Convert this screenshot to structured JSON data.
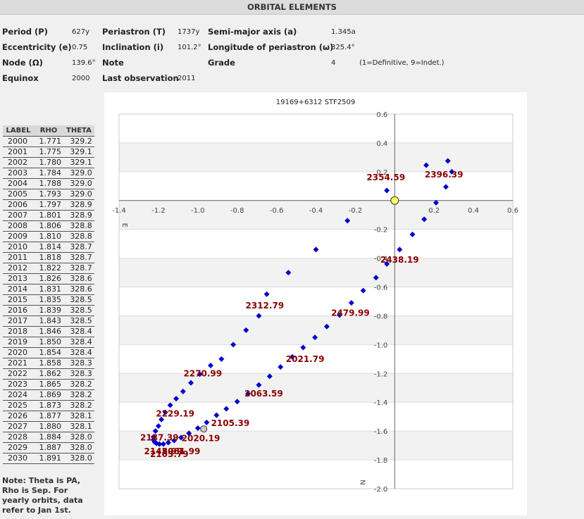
{
  "header": {
    "title": "ORBITAL ELEMENTS"
  },
  "elements": {
    "period": {
      "label": "Period (P)",
      "value": "627y"
    },
    "periastron": {
      "label": "Periastron (T)",
      "value": "1737y"
    },
    "semi_major": {
      "label": "Semi-major axis (a)",
      "value": "1.345a"
    },
    "eccentricity": {
      "label": "Eccentricity (e)",
      "value": "0.75"
    },
    "inclination": {
      "label": "Inclination (i)",
      "value": "101.2°"
    },
    "long_periastron": {
      "label": "Longitude of periastron (ω)",
      "value": "325.4°"
    },
    "node": {
      "label": "Node (Ω)",
      "value": "139.6°"
    },
    "note": {
      "label": "Note",
      "value": ""
    },
    "grade": {
      "label": "Grade",
      "value": "4",
      "hint": "(1=Definitive, 9=Indet.)"
    },
    "equinox": {
      "label": "Equinox",
      "value": "2000"
    },
    "last_obs": {
      "label": "Last observation",
      "value": "2011"
    }
  },
  "table": {
    "headers": [
      "LABEL",
      "RHO",
      "THETA"
    ],
    "rows": [
      [
        "2000",
        "1.771",
        "329.2"
      ],
      [
        "2001",
        "1.775",
        "329.1"
      ],
      [
        "2002",
        "1.780",
        "329.1"
      ],
      [
        "2003",
        "1.784",
        "329.0"
      ],
      [
        "2004",
        "1.788",
        "329.0"
      ],
      [
        "2005",
        "1.793",
        "329.0"
      ],
      [
        "2006",
        "1.797",
        "328.9"
      ],
      [
        "2007",
        "1.801",
        "328.9"
      ],
      [
        "2008",
        "1.806",
        "328.8"
      ],
      [
        "2009",
        "1.810",
        "328.8"
      ],
      [
        "2010",
        "1.814",
        "328.7"
      ],
      [
        "2011",
        "1.818",
        "328.7"
      ],
      [
        "2012",
        "1.822",
        "328.7"
      ],
      [
        "2013",
        "1.826",
        "328.6"
      ],
      [
        "2014",
        "1.831",
        "328.6"
      ],
      [
        "2015",
        "1.835",
        "328.5"
      ],
      [
        "2016",
        "1.839",
        "328.5"
      ],
      [
        "2017",
        "1.843",
        "328.5"
      ],
      [
        "2018",
        "1.846",
        "328.4"
      ],
      [
        "2019",
        "1.850",
        "328.4"
      ],
      [
        "2020",
        "1.854",
        "328.4"
      ],
      [
        "2021",
        "1.858",
        "328.3"
      ],
      [
        "2022",
        "1.862",
        "328.3"
      ],
      [
        "2023",
        "1.865",
        "328.2"
      ],
      [
        "2024",
        "1.869",
        "328.2"
      ],
      [
        "2025",
        "1.873",
        "328.2"
      ],
      [
        "2026",
        "1.877",
        "328.1"
      ],
      [
        "2027",
        "1.880",
        "328.1"
      ],
      [
        "2028",
        "1.884",
        "328.0"
      ],
      [
        "2029",
        "1.887",
        "328.0"
      ],
      [
        "2030",
        "1.891",
        "328.0"
      ]
    ]
  },
  "note_text": "Note: Theta is PA, Rho is Sep. For yearly orbits, data refer to Jan 1st.",
  "chart_data": {
    "type": "scatter",
    "title": "19169+6312 STF2509",
    "xlim": [
      -1.4,
      0.6
    ],
    "ylim": [
      -2.0,
      0.6
    ],
    "xticks": [
      "-1.4",
      "-1.2",
      "-1.0",
      "-0.8",
      "-0.6",
      "-0.4",
      "-0.2",
      "0.2",
      "0.4",
      "0.6"
    ],
    "xtick_values": [
      -1.4,
      -1.2,
      -1.0,
      -0.8,
      -0.6,
      -0.4,
      -0.2,
      0.2,
      0.4,
      0.6
    ],
    "yticks": [
      "0.6",
      "0.4",
      "0.2",
      "-0.2",
      "-0.4",
      "-0.6",
      "-0.8",
      "-1.0",
      "-1.2",
      "-1.4",
      "-1.6",
      "-1.8",
      "-2.0"
    ],
    "ytick_values": [
      0.6,
      0.4,
      0.2,
      -0.2,
      -0.4,
      -0.6,
      -0.8,
      -1.0,
      -1.2,
      -1.4,
      -1.6,
      -1.8,
      -2.0
    ],
    "x_axis_letter": "E",
    "y_axis_letter": "N",
    "grid": true,
    "colors": {
      "points": "#0000cc",
      "labels": "#8b0000",
      "primary": "#ffff66",
      "current": "#cccccc"
    },
    "primary": [
      0,
      0
    ],
    "current_point": [
      -0.97,
      -1.585
    ],
    "points": [
      [
        -0.04,
        0.07
      ],
      [
        0.16,
        0.245
      ],
      [
        0.27,
        0.275
      ],
      [
        0.29,
        0.2
      ],
      [
        0.26,
        0.095
      ],
      [
        0.21,
        -0.015
      ],
      [
        0.15,
        -0.13
      ],
      [
        0.09,
        -0.235
      ],
      [
        0.025,
        -0.34
      ],
      [
        -0.04,
        -0.44
      ],
      [
        -0.095,
        -0.535
      ],
      [
        -0.16,
        -0.625
      ],
      [
        -0.22,
        -0.71
      ],
      [
        -0.28,
        -0.795
      ],
      [
        -0.345,
        -0.875
      ],
      [
        -0.405,
        -0.95
      ],
      [
        -0.465,
        -1.02
      ],
      [
        -0.52,
        -1.085
      ],
      [
        -0.58,
        -1.155
      ],
      [
        -0.635,
        -1.22
      ],
      [
        -0.69,
        -1.28
      ],
      [
        -0.745,
        -1.34
      ],
      [
        -0.8,
        -1.395
      ],
      [
        -0.855,
        -1.445
      ],
      [
        -0.905,
        -1.49
      ],
      [
        -0.955,
        -1.54
      ],
      [
        -1.0,
        -1.58
      ],
      [
        -1.045,
        -1.615
      ],
      [
        -1.085,
        -1.645
      ],
      [
        -1.12,
        -1.665
      ],
      [
        -1.15,
        -1.68
      ],
      [
        -1.175,
        -1.69
      ],
      [
        -1.195,
        -1.69
      ],
      [
        -1.21,
        -1.685
      ],
      [
        -1.22,
        -1.675
      ],
      [
        -1.225,
        -1.66
      ],
      [
        -1.225,
        -1.64
      ],
      [
        -1.215,
        -1.6
      ],
      [
        -1.2,
        -1.565
      ],
      [
        -1.185,
        -1.52
      ],
      [
        -1.165,
        -1.47
      ],
      [
        -1.14,
        -1.42
      ],
      [
        -1.11,
        -1.375
      ],
      [
        -1.075,
        -1.325
      ],
      [
        -1.035,
        -1.265
      ],
      [
        -0.99,
        -1.205
      ],
      [
        -0.935,
        -1.145
      ],
      [
        -0.88,
        -1.1
      ],
      [
        -0.82,
        -1.0
      ],
      [
        -0.755,
        -0.9
      ],
      [
        -0.69,
        -0.8
      ],
      [
        -0.65,
        -0.65
      ],
      [
        -0.54,
        -0.5
      ],
      [
        -0.4,
        -0.34
      ],
      [
        -0.24,
        -0.14
      ]
    ],
    "annotations": [
      {
        "text": "2354.59",
        "x": -0.045,
        "y": 0.14
      },
      {
        "text": "2396.39",
        "x": 0.25,
        "y": 0.16
      },
      {
        "text": "2438.19",
        "x": 0.025,
        "y": -0.43
      },
      {
        "text": "2312.79",
        "x": -0.66,
        "y": -0.75
      },
      {
        "text": "2479.99",
        "x": -0.225,
        "y": -0.8
      },
      {
        "text": "2021.79",
        "x": -0.455,
        "y": -1.12
      },
      {
        "text": "2270.99",
        "x": -0.975,
        "y": -1.22
      },
      {
        "text": "2063.59",
        "x": -0.665,
        "y": -1.36
      },
      {
        "text": "2229.19",
        "x": -1.115,
        "y": -1.5
      },
      {
        "text": "2105.39",
        "x": -0.835,
        "y": -1.565
      },
      {
        "text": "2187.39",
        "x": -1.195,
        "y": -1.665
      },
      {
        "text": "2020.19",
        "x": -0.985,
        "y": -1.67
      },
      {
        "text": "2145.99",
        "x": -1.175,
        "y": -1.76
      },
      {
        "text": "2061.99",
        "x": -1.085,
        "y": -1.76
      },
      {
        "text": "2103.79",
        "x": -1.145,
        "y": -1.78
      }
    ]
  }
}
